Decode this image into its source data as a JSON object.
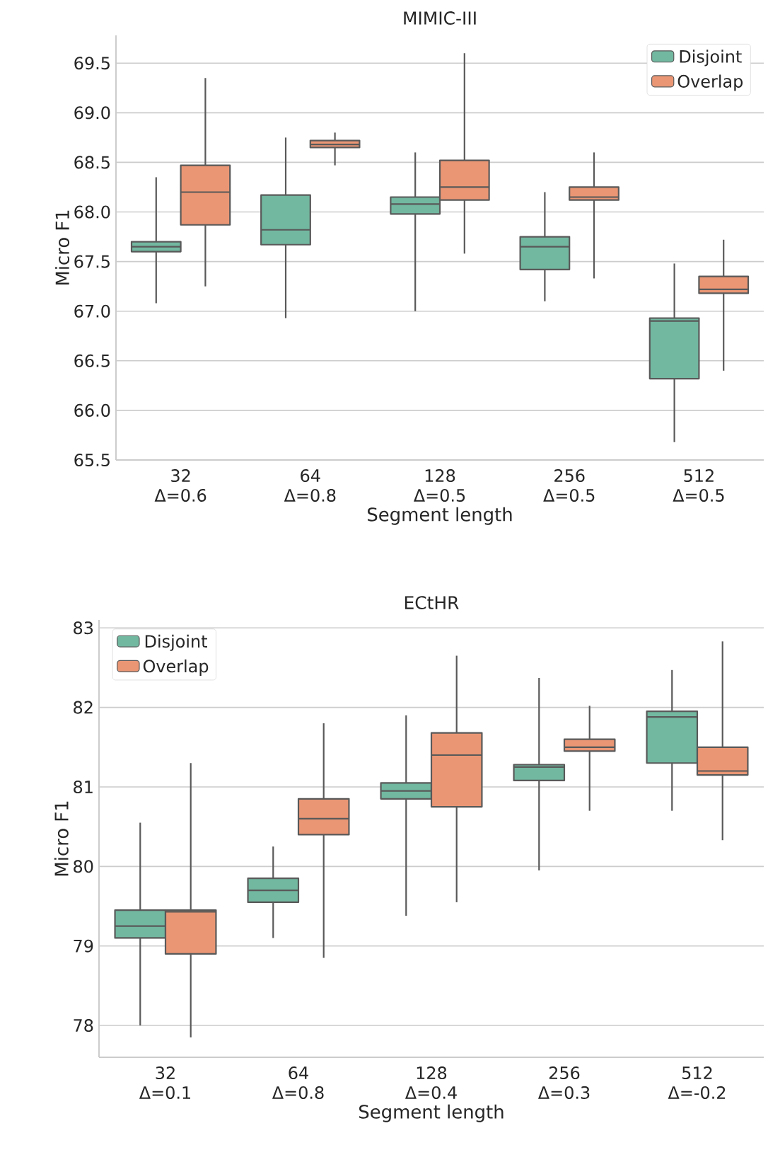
{
  "chart_data": [
    {
      "type": "box",
      "title": "MIMIC-III",
      "xlabel": "Segment length",
      "ylabel": "Micro F1",
      "categories": [
        "32 Δ=0.6",
        "64 Δ=0.8",
        "128 Δ=0.5",
        "256 Δ=0.5",
        "512 Δ=0.5"
      ],
      "ylim": [
        65.5,
        69.78
      ],
      "yticks": [
        {
          "value": 65.5,
          "label": "65.5"
        },
        {
          "value": 66.0,
          "label": "66.0"
        },
        {
          "value": 66.5,
          "label": "66.5"
        },
        {
          "value": 67.0,
          "label": "67.0"
        },
        {
          "value": 67.5,
          "label": "67.5"
        },
        {
          "value": 68.0,
          "label": "68.0"
        },
        {
          "value": 68.5,
          "label": "68.5"
        },
        {
          "value": 69.0,
          "label": "69.0"
        },
        {
          "value": 69.5,
          "label": "69.5"
        }
      ],
      "grid": "y",
      "legend": "top right",
      "series": [
        {
          "name": "Disjoint",
          "color": "#72b8a0",
          "boxes": [
            {
              "low": 67.08,
              "q1": 67.6,
              "median": 67.65,
              "q3": 67.7,
              "high": 68.35
            },
            {
              "low": 66.93,
              "q1": 67.67,
              "median": 67.82,
              "q3": 68.17,
              "high": 68.75
            },
            {
              "low": 67.0,
              "q1": 67.98,
              "median": 68.08,
              "q3": 68.15,
              "high": 68.6
            },
            {
              "low": 67.1,
              "q1": 67.42,
              "median": 67.65,
              "q3": 67.75,
              "high": 68.2
            },
            {
              "low": 65.68,
              "q1": 66.32,
              "median": 66.9,
              "q3": 66.93,
              "high": 67.48
            }
          ]
        },
        {
          "name": "Overlap",
          "color": "#ea9674",
          "boxes": [
            {
              "low": 67.25,
              "q1": 67.87,
              "median": 68.2,
              "q3": 68.47,
              "high": 69.35
            },
            {
              "low": 68.47,
              "q1": 68.65,
              "median": 68.68,
              "q3": 68.72,
              "high": 68.8
            },
            {
              "low": 67.58,
              "q1": 68.12,
              "median": 68.25,
              "q3": 68.52,
              "high": 69.6
            },
            {
              "low": 67.33,
              "q1": 68.12,
              "median": 68.15,
              "q3": 68.25,
              "high": 68.6
            },
            {
              "low": 66.4,
              "q1": 67.18,
              "median": 67.22,
              "q3": 67.35,
              "high": 67.72
            }
          ]
        }
      ]
    },
    {
      "type": "box",
      "title": "ECtHR",
      "xlabel": "Segment length",
      "ylabel": "Micro F1",
      "categories": [
        "32 Δ=0.1",
        "64 Δ=0.8",
        "128 Δ=0.4",
        "256 Δ=0.3",
        "512 Δ=-0.2"
      ],
      "ylim": [
        77.6,
        83.1
      ],
      "yticks": [
        78,
        79,
        80,
        81,
        82,
        83
      ],
      "grid": "y",
      "legend": "top left",
      "series": [
        {
          "name": "Disjoint",
          "color": "#72b8a0",
          "boxes": [
            {
              "low": 78.0,
              "q1": 79.1,
              "median": 79.25,
              "q3": 79.45,
              "high": 80.55
            },
            {
              "low": 79.1,
              "q1": 79.55,
              "median": 79.7,
              "q3": 79.85,
              "high": 80.25
            },
            {
              "low": 79.38,
              "q1": 80.85,
              "median": 80.95,
              "q3": 81.05,
              "high": 81.9
            },
            {
              "low": 79.95,
              "q1": 81.08,
              "median": 81.25,
              "q3": 81.28,
              "high": 82.37
            },
            {
              "low": 80.7,
              "q1": 81.3,
              "median": 81.88,
              "q3": 81.95,
              "high": 82.47
            }
          ]
        },
        {
          "name": "Overlap",
          "color": "#ea9674",
          "boxes": [
            {
              "low": 77.85,
              "q1": 78.9,
              "median": 79.43,
              "q3": 79.45,
              "high": 81.3
            },
            {
              "low": 78.85,
              "q1": 80.4,
              "median": 80.6,
              "q3": 80.85,
              "high": 81.8
            },
            {
              "low": 79.55,
              "q1": 80.75,
              "median": 81.4,
              "q3": 81.68,
              "high": 82.65
            },
            {
              "low": 80.7,
              "q1": 81.45,
              "median": 81.5,
              "q3": 81.6,
              "high": 82.02
            },
            {
              "low": 80.33,
              "q1": 81.15,
              "median": 81.2,
              "q3": 81.5,
              "high": 82.83
            }
          ]
        }
      ]
    }
  ]
}
